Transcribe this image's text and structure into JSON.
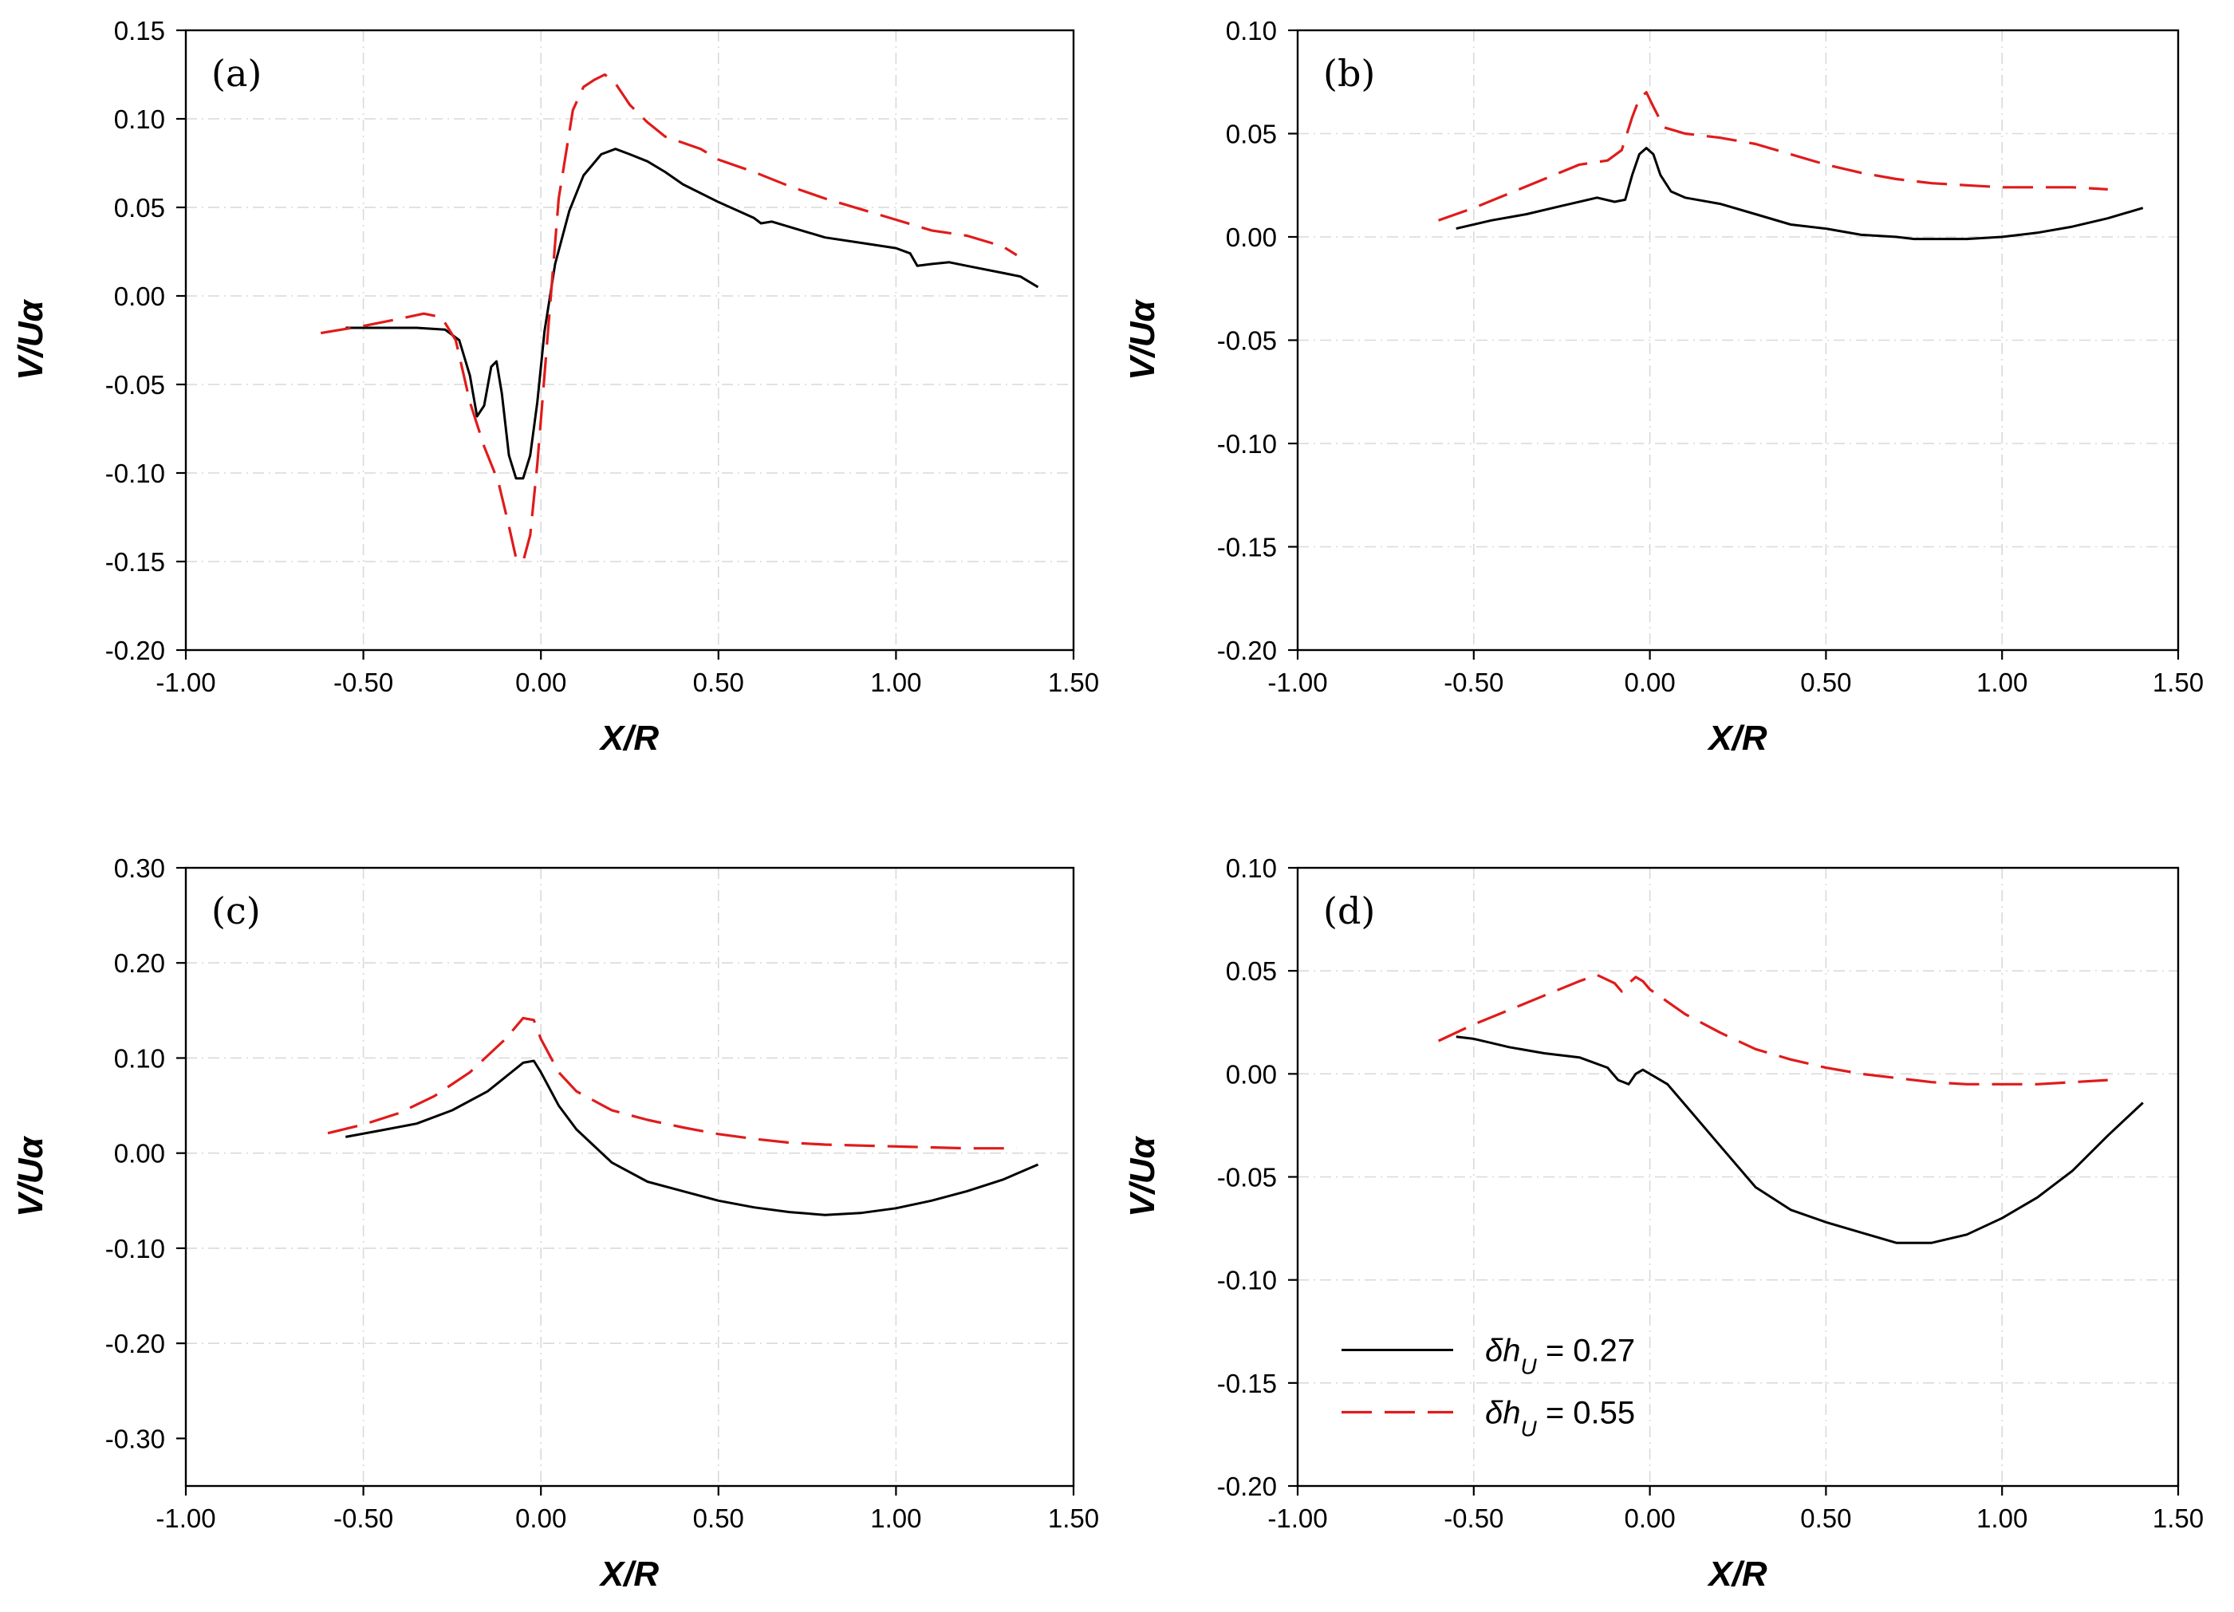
{
  "chart_data": [
    {
      "type": "line",
      "panel": "(a)",
      "xlabel": "X/R",
      "ylabel": "V/Uα",
      "xlim": [
        -1.0,
        1.5
      ],
      "ylim": [
        -0.2,
        0.15
      ],
      "xticks": [
        -1.0,
        -0.5,
        0.0,
        0.5,
        1.0,
        1.5
      ],
      "xtick_labels": [
        "-1.00",
        "-0.50",
        "0.00",
        "0.50",
        "1.00",
        "1.50"
      ],
      "yticks": [
        -0.2,
        -0.15,
        -0.1,
        -0.05,
        0.0,
        0.05,
        0.1,
        0.15
      ],
      "ytick_labels": [
        "-0.20",
        "-0.15",
        "-0.10",
        "-0.05",
        "0.00",
        "0.05",
        "0.10",
        "0.15"
      ],
      "grid": true,
      "series": [
        {
          "name": "δh_U = 0.27",
          "style": "solid",
          "color": "#000000",
          "x": [
            -0.55,
            -0.45,
            -0.35,
            -0.27,
            -0.23,
            -0.2,
            -0.18,
            -0.16,
            -0.14,
            -0.125,
            -0.11,
            -0.09,
            -0.07,
            -0.05,
            -0.03,
            -0.01,
            0.01,
            0.04,
            0.08,
            0.12,
            0.17,
            0.21,
            0.25,
            0.3,
            0.35,
            0.4,
            0.5,
            0.6,
            0.62,
            0.65,
            0.7,
            0.8,
            0.9,
            1.0,
            1.04,
            1.06,
            1.1,
            1.15,
            1.2,
            1.3,
            1.35,
            1.4
          ],
          "y": [
            -0.018,
            -0.018,
            -0.018,
            -0.019,
            -0.025,
            -0.045,
            -0.068,
            -0.062,
            -0.04,
            -0.037,
            -0.055,
            -0.09,
            -0.103,
            -0.103,
            -0.09,
            -0.06,
            -0.02,
            0.018,
            0.048,
            0.068,
            0.08,
            0.083,
            0.08,
            0.076,
            0.07,
            0.063,
            0.053,
            0.044,
            0.041,
            0.042,
            0.039,
            0.033,
            0.03,
            0.027,
            0.024,
            0.017,
            0.018,
            0.019,
            0.017,
            0.013,
            0.011,
            0.005
          ]
        },
        {
          "name": "δh_U = 0.55",
          "style": "dashed",
          "color": "#e01b1b",
          "x": [
            -0.62,
            -0.5,
            -0.4,
            -0.33,
            -0.28,
            -0.24,
            -0.2,
            -0.16,
            -0.12,
            -0.09,
            -0.07,
            -0.05,
            -0.03,
            -0.01,
            0.02,
            0.05,
            0.09,
            0.12,
            0.15,
            0.18,
            0.21,
            0.25,
            0.3,
            0.35,
            0.45,
            0.5,
            0.6,
            0.7,
            0.8,
            0.9,
            1.0,
            1.05,
            1.1,
            1.2,
            1.3,
            1.34
          ],
          "y": [
            -0.021,
            -0.017,
            -0.013,
            -0.01,
            -0.012,
            -0.025,
            -0.06,
            -0.085,
            -0.105,
            -0.13,
            -0.148,
            -0.15,
            -0.135,
            -0.095,
            -0.02,
            0.055,
            0.105,
            0.118,
            0.122,
            0.125,
            0.12,
            0.108,
            0.098,
            0.09,
            0.083,
            0.077,
            0.07,
            0.062,
            0.055,
            0.049,
            0.043,
            0.04,
            0.037,
            0.034,
            0.028,
            0.023
          ]
        }
      ]
    },
    {
      "type": "line",
      "panel": "(b)",
      "xlabel": "X/R",
      "ylabel": "V/Uα",
      "xlim": [
        -1.0,
        1.5
      ],
      "ylim": [
        -0.2,
        0.1
      ],
      "xticks": [
        -1.0,
        -0.5,
        0.0,
        0.5,
        1.0,
        1.5
      ],
      "xtick_labels": [
        "-1.00",
        "-0.50",
        "0.00",
        "0.50",
        "1.00",
        "1.50"
      ],
      "yticks": [
        -0.2,
        -0.15,
        -0.1,
        -0.05,
        0.0,
        0.05,
        0.1
      ],
      "ytick_labels": [
        "-0.20",
        "-0.15",
        "-0.10",
        "-0.05",
        "0.00",
        "0.05",
        "0.10"
      ],
      "grid": true,
      "series": [
        {
          "name": "δh_U = 0.27",
          "style": "solid",
          "color": "#000000",
          "x": [
            -0.55,
            -0.45,
            -0.35,
            -0.25,
            -0.15,
            -0.1,
            -0.07,
            -0.05,
            -0.03,
            -0.01,
            0.01,
            0.03,
            0.06,
            0.1,
            0.2,
            0.3,
            0.4,
            0.5,
            0.6,
            0.7,
            0.75,
            0.8,
            0.9,
            1.0,
            1.1,
            1.2,
            1.3,
            1.4
          ],
          "y": [
            0.004,
            0.008,
            0.011,
            0.015,
            0.019,
            0.017,
            0.018,
            0.03,
            0.04,
            0.043,
            0.04,
            0.03,
            0.022,
            0.019,
            0.016,
            0.011,
            0.006,
            0.004,
            0.001,
            0.0,
            -0.001,
            -0.001,
            -0.001,
            0.0,
            0.002,
            0.005,
            0.009,
            0.014
          ]
        },
        {
          "name": "δh_U = 0.55",
          "style": "dashed",
          "color": "#e01b1b",
          "x": [
            -0.6,
            -0.5,
            -0.4,
            -0.3,
            -0.2,
            -0.12,
            -0.08,
            -0.05,
            -0.03,
            -0.01,
            0.01,
            0.04,
            0.1,
            0.2,
            0.3,
            0.4,
            0.5,
            0.6,
            0.7,
            0.8,
            0.9,
            1.0,
            1.1,
            1.2,
            1.3
          ],
          "y": [
            0.008,
            0.014,
            0.021,
            0.028,
            0.035,
            0.037,
            0.042,
            0.058,
            0.067,
            0.07,
            0.063,
            0.053,
            0.05,
            0.048,
            0.045,
            0.04,
            0.035,
            0.031,
            0.028,
            0.026,
            0.025,
            0.024,
            0.024,
            0.024,
            0.023
          ]
        }
      ]
    },
    {
      "type": "line",
      "panel": "(c)",
      "xlabel": "X/R",
      "ylabel": "V/Uα",
      "xlim": [
        -1.0,
        1.5
      ],
      "ylim": [
        -0.35,
        0.3
      ],
      "xticks": [
        -1.0,
        -0.5,
        0.0,
        0.5,
        1.0,
        1.5
      ],
      "xtick_labels": [
        "-1.00",
        "-0.50",
        "0.00",
        "0.50",
        "1.00",
        "1.50"
      ],
      "yticks": [
        -0.3,
        -0.2,
        -0.1,
        0.0,
        0.1,
        0.2,
        0.3
      ],
      "ytick_labels": [
        "-0.30",
        "-0.20",
        "-0.10",
        "0.00",
        "0.10",
        "0.20",
        "0.30"
      ],
      "grid": true,
      "series": [
        {
          "name": "δh_U = 0.27",
          "style": "solid",
          "color": "#000000",
          "x": [
            -0.55,
            -0.45,
            -0.35,
            -0.25,
            -0.15,
            -0.1,
            -0.05,
            -0.02,
            0.0,
            0.05,
            0.1,
            0.2,
            0.3,
            0.4,
            0.5,
            0.6,
            0.7,
            0.8,
            0.9,
            1.0,
            1.1,
            1.2,
            1.3,
            1.4
          ],
          "y": [
            0.017,
            0.024,
            0.031,
            0.045,
            0.065,
            0.08,
            0.095,
            0.097,
            0.085,
            0.05,
            0.025,
            -0.01,
            -0.03,
            -0.04,
            -0.05,
            -0.057,
            -0.062,
            -0.065,
            -0.063,
            -0.058,
            -0.05,
            -0.04,
            -0.028,
            -0.012
          ]
        },
        {
          "name": "δh_U = 0.55",
          "style": "dashed",
          "color": "#e01b1b",
          "x": [
            -0.6,
            -0.5,
            -0.4,
            -0.3,
            -0.2,
            -0.1,
            -0.05,
            -0.02,
            0.0,
            0.05,
            0.1,
            0.2,
            0.3,
            0.4,
            0.5,
            0.6,
            0.7,
            0.8,
            0.9,
            1.0,
            1.1,
            1.2,
            1.3,
            1.34
          ],
          "y": [
            0.021,
            0.03,
            0.042,
            0.06,
            0.085,
            0.12,
            0.142,
            0.14,
            0.12,
            0.085,
            0.065,
            0.045,
            0.035,
            0.027,
            0.02,
            0.015,
            0.011,
            0.009,
            0.008,
            0.007,
            0.006,
            0.005,
            0.005,
            0.005
          ]
        }
      ]
    },
    {
      "type": "line",
      "panel": "(d)",
      "xlabel": "X/R",
      "ylabel": "V/Uα",
      "xlim": [
        -1.0,
        1.5
      ],
      "ylim": [
        -0.2,
        0.1
      ],
      "xticks": [
        -1.0,
        -0.5,
        0.0,
        0.5,
        1.0,
        1.5
      ],
      "xtick_labels": [
        "-1.00",
        "-0.50",
        "0.00",
        "0.50",
        "1.00",
        "1.50"
      ],
      "yticks": [
        -0.2,
        -0.15,
        -0.1,
        -0.05,
        0.0,
        0.05,
        0.1
      ],
      "ytick_labels": [
        "-0.20",
        "-0.15",
        "-0.10",
        "-0.05",
        "0.00",
        "0.05",
        "0.10"
      ],
      "grid": true,
      "legend": {
        "placement": "bottom-left",
        "entries": [
          {
            "label": "δh",
            "sub": "U",
            "value": " = 0.27",
            "style": "solid",
            "color": "#000000"
          },
          {
            "label": "δh",
            "sub": "U",
            "value": " = 0.55",
            "style": "dashed",
            "color": "#e01b1b"
          }
        ]
      },
      "series": [
        {
          "name": "δh_U = 0.27",
          "style": "solid",
          "color": "#000000",
          "x": [
            -0.55,
            -0.5,
            -0.45,
            -0.4,
            -0.3,
            -0.2,
            -0.12,
            -0.09,
            -0.06,
            -0.04,
            -0.02,
            0.0,
            0.05,
            0.1,
            0.2,
            0.3,
            0.4,
            0.5,
            0.6,
            0.7,
            0.8,
            0.9,
            1.0,
            1.1,
            1.2,
            1.3,
            1.4
          ],
          "y": [
            0.018,
            0.017,
            0.015,
            0.013,
            0.01,
            0.008,
            0.003,
            -0.003,
            -0.005,
            0.0,
            0.002,
            0.0,
            -0.005,
            -0.015,
            -0.035,
            -0.055,
            -0.066,
            -0.072,
            -0.077,
            -0.082,
            -0.082,
            -0.078,
            -0.07,
            -0.06,
            -0.047,
            -0.03,
            -0.014
          ]
        },
        {
          "name": "δh_U = 0.55",
          "style": "dashed",
          "color": "#e01b1b",
          "x": [
            -0.6,
            -0.5,
            -0.4,
            -0.3,
            -0.2,
            -0.15,
            -0.1,
            -0.08,
            -0.06,
            -0.04,
            -0.02,
            0.0,
            0.05,
            0.1,
            0.2,
            0.3,
            0.4,
            0.5,
            0.6,
            0.7,
            0.8,
            0.9,
            1.0,
            1.1,
            1.2,
            1.3
          ],
          "y": [
            0.016,
            0.024,
            0.031,
            0.038,
            0.045,
            0.048,
            0.044,
            0.04,
            0.044,
            0.047,
            0.045,
            0.041,
            0.035,
            0.029,
            0.02,
            0.012,
            0.007,
            0.003,
            0.0,
            -0.002,
            -0.004,
            -0.005,
            -0.005,
            -0.005,
            -0.004,
            -0.003
          ]
        }
      ]
    }
  ]
}
